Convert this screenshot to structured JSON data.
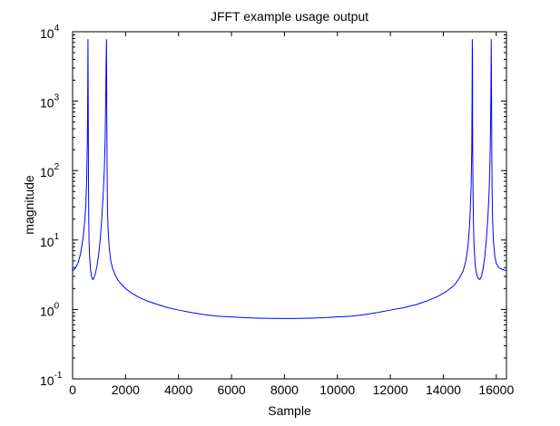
{
  "chart_data": {
    "type": "line",
    "title": "JFFT example usage output",
    "xlabel": "Sample",
    "ylabel": "magnitude",
    "xscale": "linear",
    "yscale": "log",
    "xlim": [
      0,
      16384
    ],
    "ylim": [
      0.1,
      10000
    ],
    "grid": false,
    "legend": "none",
    "line_color": "#0000ff",
    "xticks": [
      {
        "value": 0,
        "label": "0"
      },
      {
        "value": 2000,
        "label": "2000"
      },
      {
        "value": 4000,
        "label": "4000"
      },
      {
        "value": 6000,
        "label": "6000"
      },
      {
        "value": 8000,
        "label": "8000"
      },
      {
        "value": 10000,
        "label": "10000"
      },
      {
        "value": 12000,
        "label": "12000"
      },
      {
        "value": 14000,
        "label": "14000"
      },
      {
        "value": 16000,
        "label": "16000"
      }
    ],
    "yticks": [
      {
        "value": 0.1,
        "base": "10",
        "exp": "-1"
      },
      {
        "value": 1,
        "base": "10",
        "exp": "0"
      },
      {
        "value": 10,
        "base": "10",
        "exp": "1"
      },
      {
        "value": 100,
        "base": "10",
        "exp": "2"
      },
      {
        "value": 1000,
        "base": "10",
        "exp": "3"
      },
      {
        "value": 10000,
        "base": "10",
        "exp": "4"
      }
    ],
    "series": [
      {
        "x": [
          0,
          100,
          200,
          300,
          400,
          460,
          500,
          530,
          555,
          570,
          580,
          590,
          600,
          610,
          620,
          640,
          680,
          720,
          760,
          800,
          860,
          920,
          980,
          1040,
          1100,
          1160,
          1200,
          1230,
          1255,
          1270,
          1280,
          1290,
          1300,
          1315,
          1340,
          1380,
          1440,
          1520,
          1600,
          1700,
          1800,
          2000,
          2200,
          2500,
          2800,
          3200,
          3600,
          4000,
          4500,
          5000,
          5500,
          6000,
          6500,
          7000,
          7500,
          8000,
          8192,
          8400,
          9000,
          9500,
          10000,
          10500,
          11000,
          11500,
          12000,
          12500,
          13000,
          13400,
          13800,
          14100,
          14400,
          14600,
          14750,
          14850,
          14930,
          14980,
          15020,
          15050,
          15075,
          15085,
          15095,
          15103,
          15105,
          15110,
          15120,
          15135,
          15160,
          15200,
          15260,
          15320,
          15380,
          15440,
          15500,
          15560,
          15620,
          15680,
          15730,
          15760,
          15785,
          15800,
          15810,
          15820,
          15830,
          15840,
          15860,
          15890,
          15940,
          16000,
          16100,
          16200,
          16300,
          16383
        ],
        "y": [
          3.6,
          3.9,
          4.6,
          6.3,
          11,
          19,
          33,
          70,
          250,
          1200,
          7800,
          1000,
          70,
          20,
          10,
          6,
          3.6,
          2.9,
          2.7,
          2.8,
          3.3,
          4.2,
          6,
          10,
          20,
          50,
          110,
          300,
          1500,
          4500,
          7800,
          800,
          130,
          30,
          14,
          8,
          5,
          3.8,
          3.2,
          2.7,
          2.4,
          2,
          1.75,
          1.5,
          1.33,
          1.18,
          1.06,
          0.98,
          0.9,
          0.84,
          0.8,
          0.78,
          0.76,
          0.75,
          0.745,
          0.74,
          0.74,
          0.742,
          0.75,
          0.76,
          0.78,
          0.8,
          0.84,
          0.9,
          0.98,
          1.06,
          1.18,
          1.33,
          1.55,
          1.8,
          2.2,
          2.8,
          3.6,
          5,
          8,
          14,
          28,
          60,
          200,
          1000,
          7800,
          3800,
          600,
          200,
          60,
          20,
          8.5,
          4.5,
          3.2,
          2.8,
          2.7,
          3,
          3.8,
          5.5,
          9.5,
          20,
          50,
          130,
          450,
          1800,
          7800,
          1500,
          200,
          60,
          20,
          10,
          6,
          4.6,
          4,
          3.8,
          3.7,
          3.6
        ]
      }
    ]
  }
}
